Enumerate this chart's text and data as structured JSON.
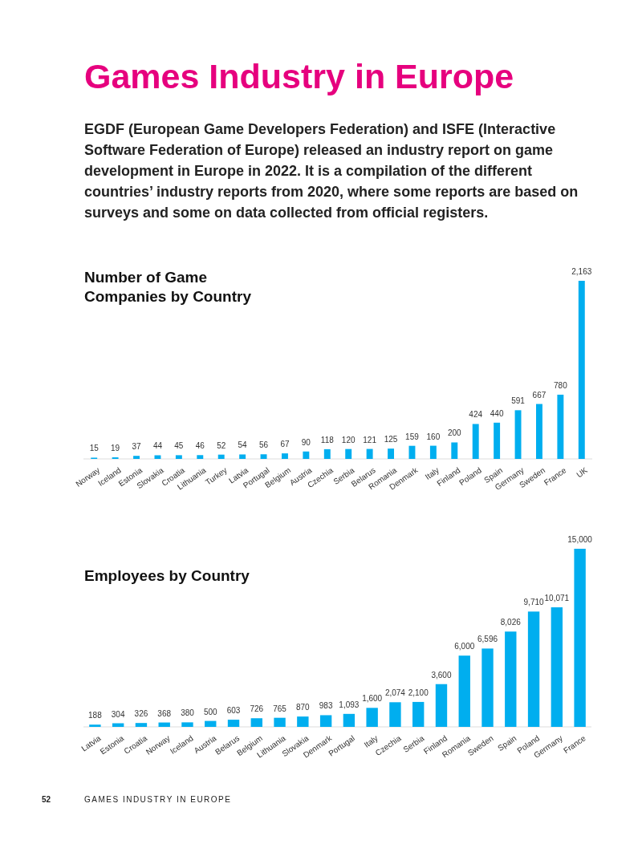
{
  "chart_data": [
    {
      "type": "other",
      "title": "Games Industry in Europe",
      "subtitle": "EGDF (European Game Developers Federation) and ISFE (Interactive Software Federation of Europe) released an industry report on game development in Europe in 2022. It is a compilation of the different countries’ industry reports from 2020, where some reports are based on surveys and some on data collected from official registers.",
      "annotations": [
        "52",
        "GAMES INDUSTRY IN EUROPE"
      ]
    },
    {
      "type": "bar",
      "title": "Number of Game Companies by Country",
      "categories": [
        "Norway",
        "Iceland",
        "Estonia",
        "Slovakia",
        "Croatia",
        "Lithuania",
        "Turkey",
        "Latvia",
        "Portugal",
        "Belgium",
        "Austria",
        "Czechia",
        "Serbia",
        "Belarus",
        "Romania",
        "Denmark",
        "Italy",
        "Finland",
        "Poland",
        "Spain",
        "Germany",
        "Sweden",
        "France",
        "UK"
      ],
      "values": [
        15,
        19,
        37,
        44,
        45,
        46,
        52,
        54,
        56,
        67,
        90,
        118,
        120,
        121,
        125,
        159,
        160,
        200,
        424,
        440,
        591,
        667,
        780,
        2163
      ],
      "color": "#00aeef",
      "value_labels": [
        "15",
        "19",
        "37",
        "44",
        "45",
        "46",
        "52",
        "54",
        "56",
        "67",
        "90",
        "118",
        "120",
        "121",
        "125",
        "159",
        "160",
        "200",
        "424",
        "440",
        "591",
        "667",
        "780",
        "2,163"
      ]
    },
    {
      "type": "bar",
      "title": "Employees by Country",
      "categories": [
        "Latvia",
        "Estonia",
        "Croatia",
        "Norway",
        "Iceland",
        "Austria",
        "Belarus",
        "Belgium",
        "Lithuania",
        "Slovakia",
        "Denmark",
        "Portugal",
        "Italy",
        "Czechia",
        "Serbia",
        "Finland",
        "Romania",
        "Sweden",
        "Spain",
        "Poland",
        "Germany",
        "France"
      ],
      "values": [
        188,
        304,
        326,
        368,
        380,
        500,
        603,
        726,
        765,
        870,
        983,
        1093,
        1600,
        2074,
        2100,
        3600,
        6000,
        6596,
        8026,
        9710,
        10071,
        15000
      ],
      "color": "#00aeef",
      "value_labels": [
        "188",
        "304",
        "326",
        "368",
        "380",
        "500",
        "603",
        "726",
        "765",
        "870",
        "983",
        "1,093",
        "1,600",
        "2,074",
        "2,100",
        "3,600",
        "6,000",
        "6,596",
        "8,026",
        "9,710",
        "10,071",
        "15,000"
      ]
    }
  ]
}
